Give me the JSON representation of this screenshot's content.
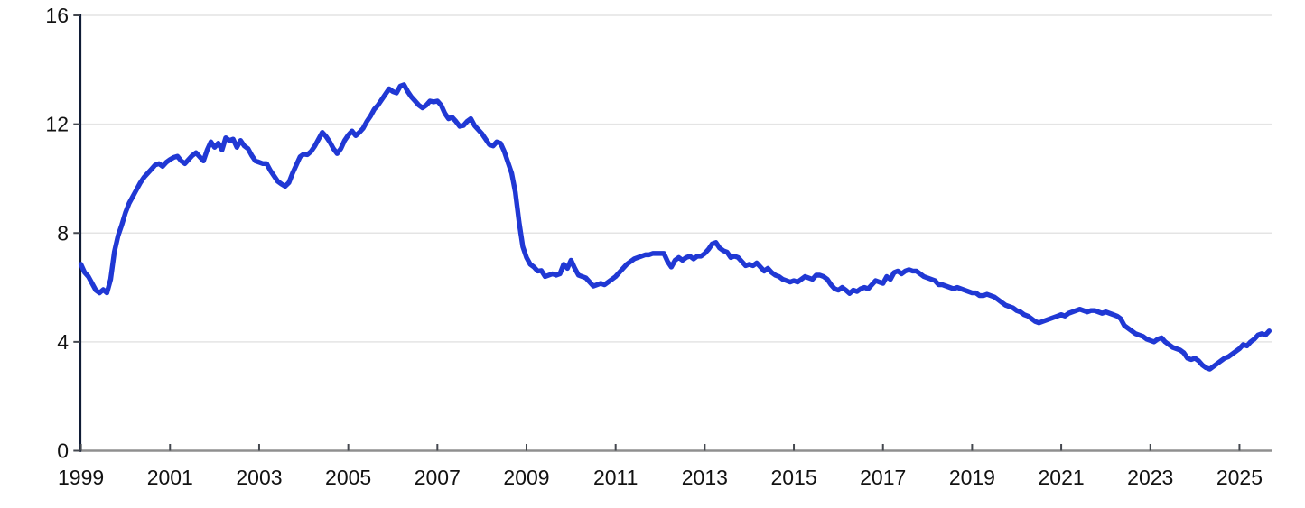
{
  "chart_data": {
    "type": "line",
    "title": "",
    "legend": "none",
    "grid": "horizontal",
    "line_color": "#2038d4",
    "gridline_color": "#e4e4e4",
    "left_axis_color": "#101c36",
    "bottom_axis_color": "#8f8f8f",
    "tick_mark_color": "#44484f",
    "label_color": "#121212",
    "x_axis": {
      "tick_labels": [
        "1999",
        "2001",
        "2003",
        "2005",
        "2007",
        "2009",
        "2011",
        "2013",
        "2015",
        "2017",
        "2019",
        "2021",
        "2023",
        "2025"
      ],
      "tick_years": [
        1999,
        2001,
        2003,
        2005,
        2007,
        2009,
        2011,
        2013,
        2015,
        2017,
        2019,
        2021,
        2023,
        2025
      ],
      "range": [
        1999,
        2025.75
      ]
    },
    "y_axis": {
      "tick_labels": [
        "0",
        "4",
        "8",
        "12",
        "16"
      ],
      "tick_values": [
        0,
        4,
        8,
        12,
        16
      ],
      "range": [
        0,
        16
      ]
    },
    "series": [
      {
        "name": "main-series",
        "start_year": 1999,
        "frequency": "monthly",
        "values": [
          6.85,
          6.55,
          6.4,
          6.15,
          5.9,
          5.8,
          5.92,
          5.8,
          6.3,
          7.3,
          7.9,
          8.3,
          8.75,
          9.1,
          9.35,
          9.6,
          9.85,
          10.05,
          10.2,
          10.35,
          10.5,
          10.55,
          10.45,
          10.6,
          10.7,
          10.78,
          10.82,
          10.65,
          10.55,
          10.7,
          10.85,
          10.95,
          10.8,
          10.65,
          11.05,
          11.35,
          11.15,
          11.3,
          11.05,
          11.5,
          11.4,
          11.45,
          11.15,
          11.4,
          11.2,
          11.1,
          10.85,
          10.65,
          10.6,
          10.55,
          10.55,
          10.3,
          10.1,
          9.9,
          9.8,
          9.72,
          9.85,
          10.2,
          10.5,
          10.8,
          10.9,
          10.88,
          11.0,
          11.2,
          11.45,
          11.7,
          11.55,
          11.35,
          11.1,
          10.92,
          11.1,
          11.4,
          11.6,
          11.75,
          11.58,
          11.7,
          11.85,
          12.1,
          12.3,
          12.55,
          12.7,
          12.9,
          13.1,
          13.3,
          13.2,
          13.15,
          13.4,
          13.45,
          13.2,
          13.0,
          12.85,
          12.7,
          12.6,
          12.7,
          12.85,
          12.82,
          12.85,
          12.7,
          12.4,
          12.2,
          12.25,
          12.1,
          11.92,
          11.95,
          12.1,
          12.2,
          11.95,
          11.8,
          11.65,
          11.45,
          11.25,
          11.2,
          11.35,
          11.3,
          11.0,
          10.6,
          10.2,
          9.5,
          8.4,
          7.5,
          7.1,
          6.85,
          6.75,
          6.6,
          6.62,
          6.4,
          6.45,
          6.5,
          6.45,
          6.5,
          6.85,
          6.7,
          7.0,
          6.7,
          6.45,
          6.4,
          6.35,
          6.2,
          6.05,
          6.1,
          6.15,
          6.1,
          6.2,
          6.3,
          6.4,
          6.55,
          6.7,
          6.85,
          6.95,
          7.05,
          7.1,
          7.15,
          7.2,
          7.2,
          7.25,
          7.25,
          7.25,
          7.25,
          6.95,
          6.75,
          7.0,
          7.1,
          7.0,
          7.1,
          7.15,
          7.05,
          7.15,
          7.15,
          7.25,
          7.4,
          7.6,
          7.65,
          7.45,
          7.35,
          7.3,
          7.1,
          7.15,
          7.1,
          6.95,
          6.8,
          6.85,
          6.8,
          6.9,
          6.75,
          6.6,
          6.7,
          6.55,
          6.45,
          6.4,
          6.3,
          6.25,
          6.2,
          6.25,
          6.2,
          6.3,
          6.4,
          6.35,
          6.3,
          6.45,
          6.45,
          6.4,
          6.3,
          6.1,
          5.95,
          5.9,
          6.0,
          5.9,
          5.78,
          5.9,
          5.85,
          5.95,
          6.0,
          5.95,
          6.1,
          6.25,
          6.2,
          6.15,
          6.4,
          6.3,
          6.55,
          6.6,
          6.5,
          6.6,
          6.65,
          6.6,
          6.6,
          6.5,
          6.4,
          6.35,
          6.3,
          6.25,
          6.1,
          6.1,
          6.05,
          6.0,
          5.95,
          6.0,
          5.95,
          5.9,
          5.85,
          5.8,
          5.8,
          5.7,
          5.7,
          5.75,
          5.7,
          5.65,
          5.55,
          5.45,
          5.35,
          5.3,
          5.25,
          5.15,
          5.1,
          5.0,
          4.95,
          4.85,
          4.75,
          4.7,
          4.75,
          4.8,
          4.85,
          4.9,
          4.95,
          5.0,
          4.95,
          5.05,
          5.1,
          5.15,
          5.2,
          5.15,
          5.1,
          5.15,
          5.15,
          5.1,
          5.05,
          5.1,
          5.05,
          5.0,
          4.95,
          4.85,
          4.6,
          4.5,
          4.4,
          4.3,
          4.25,
          4.2,
          4.1,
          4.05,
          4.0,
          4.1,
          4.15,
          4.0,
          3.9,
          3.8,
          3.75,
          3.7,
          3.6,
          3.4,
          3.35,
          3.4,
          3.3,
          3.15,
          3.05,
          3.0,
          3.1,
          3.2,
          3.3,
          3.4,
          3.45,
          3.55,
          3.65,
          3.75,
          3.9,
          3.85,
          4.0,
          4.1,
          4.25,
          4.3,
          4.25,
          4.4
        ]
      }
    ]
  }
}
